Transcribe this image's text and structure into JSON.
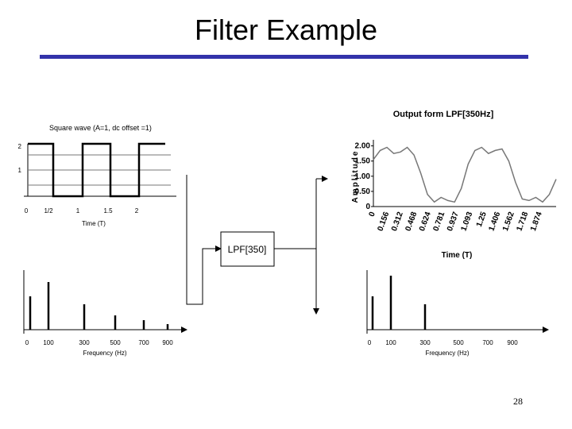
{
  "title": "Filter Example",
  "input": {
    "caption": "Square wave (A=1, dc offset =1)",
    "y_labels": [
      "2",
      "1"
    ],
    "x_labels": [
      "0",
      "1/2",
      "1",
      "1.5",
      "2"
    ],
    "x_title": "Time (T)"
  },
  "filter": {
    "label": "LPF[350]"
  },
  "output": {
    "title": "Output form LPF[350Hz]",
    "y_title": "Amplitude",
    "yticks": [
      {
        "value": 2,
        "label": "2.00"
      },
      {
        "value": 1.5,
        "label": "1.50"
      },
      {
        "value": 1,
        "label": "1.00"
      },
      {
        "value": 0.5,
        "label": "0.50"
      },
      0
    ],
    "ylim": [
      0,
      2.2
    ],
    "x_labels": [
      "0",
      "0.156",
      "0.312",
      "0.468",
      "0.624",
      "0.781",
      "0.937",
      "1.093",
      "1.25",
      "1.406",
      "1.562",
      "1.718",
      "1.874"
    ],
    "x_title": "Time (T)",
    "curve": [
      1.55,
      1.85,
      1.95,
      1.75,
      1.8,
      1.95,
      1.7,
      1.1,
      0.4,
      0.15,
      0.3,
      0.2,
      0.15,
      0.6,
      1.4,
      1.85,
      1.95,
      1.75,
      1.85,
      1.9,
      1.5,
      0.8,
      0.25,
      0.2,
      0.3,
      0.15,
      0.4,
      0.9
    ]
  },
  "input_spectrum": {
    "x_labels": [
      "0",
      "100",
      "300",
      "500",
      "700",
      "900"
    ],
    "x_title": "Frequency (Hz)",
    "stems": [
      42,
      60,
      32,
      18,
      12,
      7
    ]
  },
  "output_spectrum": {
    "x_labels": [
      "0",
      "100",
      "300",
      "500",
      "700",
      "900"
    ],
    "x_title": "Frequency (Hz)",
    "stems": [
      42,
      68,
      32
    ]
  },
  "page_number": "28"
}
